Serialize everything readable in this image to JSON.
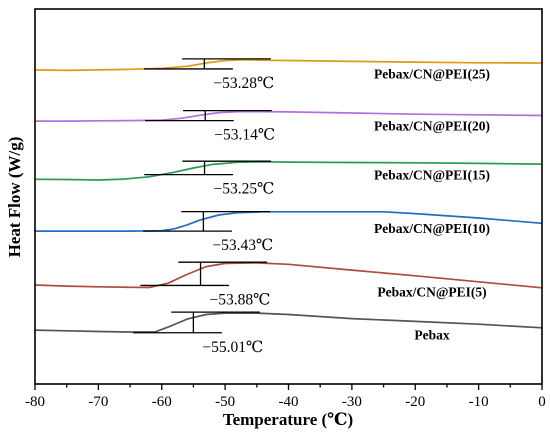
{
  "chart_data": {
    "type": "line",
    "title": "",
    "xlabel": "Temperature (℃)",
    "ylabel": "Heat Flow (W/g)",
    "xlim": [
      -80,
      0
    ],
    "xticks": [
      -80,
      -70,
      -60,
      -50,
      -40,
      -30,
      -20,
      -10,
      0
    ],
    "y_ticks_shown": false,
    "grid": false,
    "legend": "none; series labelled inline at right",
    "series": [
      {
        "name": "Pebax/CN@PEI(25)",
        "color": "#e09a1a",
        "offset": 5,
        "tg_label": "−53.28℃",
        "tg_x": -53.28,
        "points": [
          [
            -80,
            1.72
          ],
          [
            -75,
            1.7
          ],
          [
            -70,
            1.72
          ],
          [
            -65,
            1.75
          ],
          [
            -60,
            1.79
          ],
          [
            -56,
            1.88
          ],
          [
            -53,
            2.02
          ],
          [
            -50,
            2.13
          ],
          [
            -47,
            2.16
          ],
          [
            -44,
            2.14
          ],
          [
            -40,
            2.13
          ],
          [
            -30,
            2.09
          ],
          [
            -20,
            2.06
          ],
          [
            -10,
            2.03
          ],
          [
            0,
            2.02
          ]
        ]
      },
      {
        "name": "Pebax/CN@PEI(20)",
        "color": "#b36fdc",
        "offset": 4,
        "tg_label": "−53.14℃",
        "tg_x": -53.14,
        "points": [
          [
            -80,
            1.78
          ],
          [
            -75,
            1.78
          ],
          [
            -70,
            1.79
          ],
          [
            -65,
            1.8
          ],
          [
            -60,
            1.82
          ],
          [
            -57,
            1.9
          ],
          [
            -54,
            2.03
          ],
          [
            -51,
            2.15
          ],
          [
            -48,
            2.19
          ],
          [
            -44,
            2.19
          ],
          [
            -40,
            2.18
          ],
          [
            -30,
            2.13
          ],
          [
            -20,
            2.08
          ],
          [
            -10,
            2.05
          ],
          [
            0,
            2.02
          ]
        ]
      },
      {
        "name": "Pebax/CN@PEI(15)",
        "color": "#2a9a58",
        "offset": 3,
        "tg_label": "−53.25℃",
        "tg_x": -53.25,
        "points": [
          [
            -80,
            1.53
          ],
          [
            -75,
            1.52
          ],
          [
            -70,
            1.5
          ],
          [
            -66,
            1.54
          ],
          [
            -62,
            1.64
          ],
          [
            -58,
            1.84
          ],
          [
            -55,
            2.02
          ],
          [
            -52,
            2.18
          ],
          [
            -48,
            2.27
          ],
          [
            -44,
            2.29
          ],
          [
            -40,
            2.28
          ],
          [
            -30,
            2.26
          ],
          [
            -20,
            2.25
          ],
          [
            -10,
            2.22
          ],
          [
            0,
            2.19
          ]
        ]
      },
      {
        "name": "Pebax/CN@PEI(10)",
        "color": "#1f6ec4",
        "offset": 2,
        "tg_label": "−53.43℃",
        "tg_x": -53.43,
        "points": [
          [
            -80,
            1.56
          ],
          [
            -75,
            1.56
          ],
          [
            -70,
            1.56
          ],
          [
            -65,
            1.56
          ],
          [
            -60,
            1.58
          ],
          [
            -58,
            1.66
          ],
          [
            -56,
            1.83
          ],
          [
            -54,
            2.04
          ],
          [
            -51,
            2.26
          ],
          [
            -48,
            2.36
          ],
          [
            -44,
            2.4
          ],
          [
            -40,
            2.4
          ],
          [
            -30,
            2.4
          ],
          [
            -25,
            2.4
          ],
          [
            -20,
            2.32
          ],
          [
            -10,
            2.13
          ],
          [
            0,
            1.9
          ]
        ]
      },
      {
        "name": "Pebax/CN@PEI(5)",
        "color": "#b14a3c",
        "offset": 1,
        "tg_label": "−53.88℃",
        "tg_x": -53.88,
        "points": [
          [
            -80,
            1.5
          ],
          [
            -75,
            1.45
          ],
          [
            -70,
            1.42
          ],
          [
            -65,
            1.4
          ],
          [
            -62,
            1.39
          ],
          [
            -59,
            1.58
          ],
          [
            -56,
            1.96
          ],
          [
            -53,
            2.3
          ],
          [
            -50,
            2.44
          ],
          [
            -45,
            2.46
          ],
          [
            -40,
            2.4
          ],
          [
            -30,
            2.15
          ],
          [
            -20,
            1.9
          ],
          [
            -10,
            1.64
          ],
          [
            0,
            1.38
          ]
        ]
      },
      {
        "name": "Pebax",
        "color": "#555555",
        "offset": 0,
        "tg_label": "−55.01℃",
        "tg_x": -55.01,
        "points": [
          [
            -80,
            1.82
          ],
          [
            -75,
            1.79
          ],
          [
            -70,
            1.76
          ],
          [
            -65,
            1.74
          ],
          [
            -61,
            1.75
          ],
          [
            -59,
            1.95
          ],
          [
            -56,
            2.3
          ],
          [
            -53,
            2.5
          ],
          [
            -50,
            2.56
          ],
          [
            -45,
            2.56
          ],
          [
            -40,
            2.5
          ],
          [
            -30,
            2.32
          ],
          [
            -20,
            2.2
          ],
          [
            -10,
            2.08
          ],
          [
            0,
            1.92
          ]
        ]
      }
    ]
  }
}
